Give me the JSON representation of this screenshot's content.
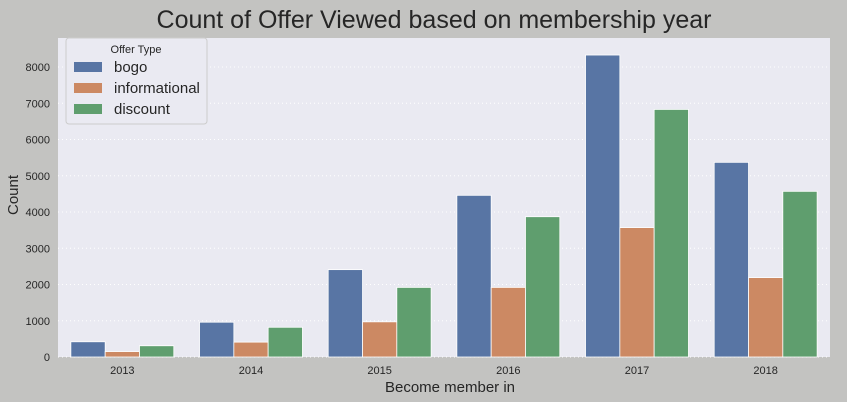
{
  "chart_data": {
    "type": "bar",
    "title": "Count of Offer Viewed based on membership year",
    "xlabel": "Become member in",
    "ylabel": "Count",
    "categories": [
      "2013",
      "2014",
      "2015",
      "2016",
      "2017",
      "2018"
    ],
    "series": [
      {
        "name": "bogo",
        "color": "#5875a4",
        "values": [
          420,
          960,
          2410,
          4460,
          8330,
          5370
        ]
      },
      {
        "name": "informational",
        "color": "#cc8963",
        "values": [
          150,
          410,
          970,
          1920,
          3570,
          2190
        ]
      },
      {
        "name": "discount",
        "color": "#5f9e6e",
        "values": [
          310,
          820,
          1920,
          3870,
          6830,
          4570
        ]
      }
    ],
    "ylim": [
      0,
      8800
    ],
    "yticks": [
      "0",
      "1000",
      "2000",
      "3000",
      "4000",
      "5000",
      "6000",
      "7000",
      "8000"
    ],
    "grid": true,
    "legend": {
      "title": "Offer Type",
      "placement": "top-left"
    },
    "plot_background": "#eaeaf2",
    "figure_background": "#c3c3c1"
  }
}
